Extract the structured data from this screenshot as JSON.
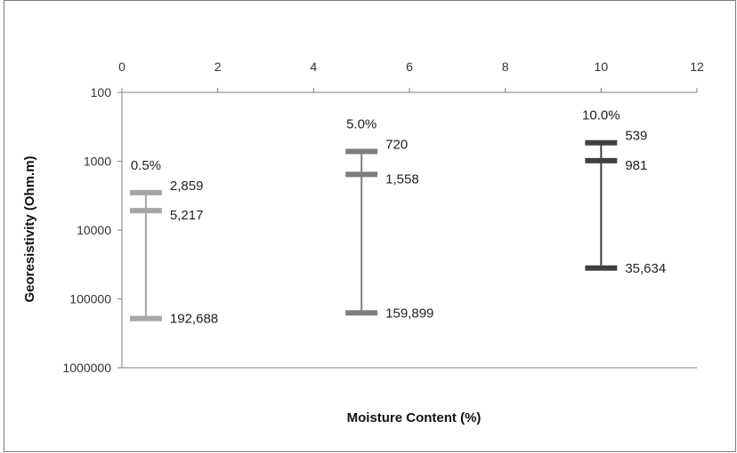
{
  "chart_data": {
    "type": "scatter",
    "subtype": "range-markers",
    "title": "",
    "xlabel": "Moisture Content (%)",
    "ylabel": "Georesistivity (Ohm.m)",
    "xlim": [
      0,
      12
    ],
    "x_ticks": [
      "0",
      "2",
      "4",
      "6",
      "8",
      "10",
      "12"
    ],
    "x_axis_position": "top",
    "y_scale": "log",
    "y_reversed": true,
    "ylim": [
      100,
      1000000
    ],
    "y_ticks": [
      "100",
      "1000",
      "10000",
      "100000",
      "1000000"
    ],
    "grid": false,
    "series": [
      {
        "name": "0.5%",
        "x": 0.5,
        "color": "#a6a6a6",
        "points": [
          {
            "y": 2859,
            "label": "2,859"
          },
          {
            "y": 5217,
            "label": "5,217"
          },
          {
            "y": 192688,
            "label": "192,688"
          }
        ]
      },
      {
        "name": "5.0%",
        "x": 5.0,
        "color": "#7f7f7f",
        "points": [
          {
            "y": 720,
            "label": "720"
          },
          {
            "y": 1558,
            "label": "1,558"
          },
          {
            "y": 159899,
            "label": "159,899"
          }
        ]
      },
      {
        "name": "10.0%",
        "x": 10.0,
        "color": "#404040",
        "points": [
          {
            "y": 539,
            "label": "539"
          },
          {
            "y": 981,
            "label": "981"
          },
          {
            "y": 35634,
            "label": "35,634"
          }
        ]
      }
    ]
  }
}
